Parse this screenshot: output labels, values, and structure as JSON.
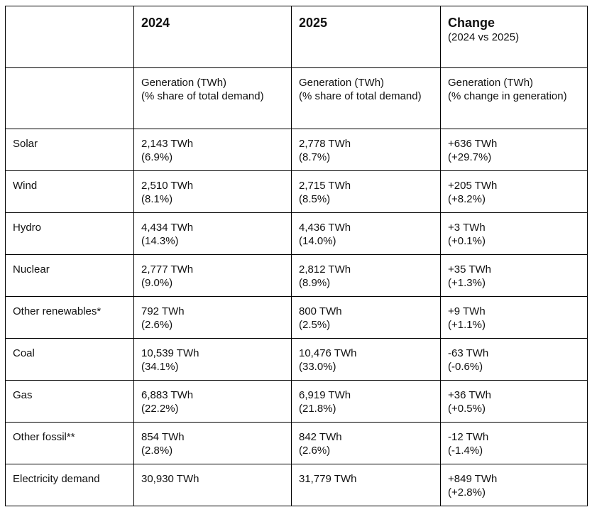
{
  "table": {
    "header": [
      {
        "title": "2024"
      },
      {
        "title": "2025"
      },
      {
        "title": "Change",
        "subtitle": "(2024 vs 2025)"
      }
    ],
    "subheader": [
      [
        "Generation (TWh)",
        "(% share of total demand)"
      ],
      [
        "Generation (TWh)",
        "(% share of total demand)"
      ],
      [
        "Generation (TWh)",
        "(% change in generation)"
      ]
    ],
    "rows": [
      {
        "label": "Solar",
        "cells": [
          [
            "2,143 TWh",
            "(6.9%)"
          ],
          [
            "2,778 TWh",
            "(8.7%)"
          ],
          [
            "+636 TWh",
            "(+29.7%)"
          ]
        ]
      },
      {
        "label": "Wind",
        "cells": [
          [
            "2,510 TWh",
            "(8.1%)"
          ],
          [
            "2,715 TWh",
            "(8.5%)"
          ],
          [
            "+205 TWh",
            "(+8.2%)"
          ]
        ]
      },
      {
        "label": "Hydro",
        "cells": [
          [
            "4,434 TWh",
            "(14.3%)"
          ],
          [
            "4,436 TWh",
            "(14.0%)"
          ],
          [
            "+3 TWh",
            "(+0.1%)"
          ]
        ]
      },
      {
        "label": "Nuclear",
        "cells": [
          [
            "2,777 TWh",
            "(9.0%)"
          ],
          [
            "2,812 TWh",
            "(8.9%)"
          ],
          [
            "+35 TWh",
            "(+1.3%)"
          ]
        ]
      },
      {
        "label": "Other renewables*",
        "cells": [
          [
            "792 TWh",
            "(2.6%)"
          ],
          [
            "800 TWh",
            "(2.5%)"
          ],
          [
            "+9 TWh",
            "(+1.1%)"
          ]
        ]
      },
      {
        "label": "Coal",
        "cells": [
          [
            "10,539 TWh",
            "(34.1%)"
          ],
          [
            "10,476 TWh",
            "(33.0%)"
          ],
          [
            "-63 TWh",
            "(-0.6%)"
          ]
        ]
      },
      {
        "label": "Gas",
        "cells": [
          [
            "6,883 TWh",
            "(22.2%)"
          ],
          [
            "6,919 TWh",
            "(21.8%)"
          ],
          [
            "+36 TWh",
            "(+0.5%)"
          ]
        ]
      },
      {
        "label": "Other fossil**",
        "cells": [
          [
            "854 TWh",
            "(2.8%)"
          ],
          [
            "842 TWh",
            "(2.6%)"
          ],
          [
            "-12 TWh",
            "(-1.4%)"
          ]
        ]
      },
      {
        "label": "Electricity demand",
        "cells": [
          [
            "30,930 TWh"
          ],
          [
            "31,779 TWh"
          ],
          [
            "+849 TWh",
            "(+2.8%)"
          ]
        ]
      }
    ]
  }
}
